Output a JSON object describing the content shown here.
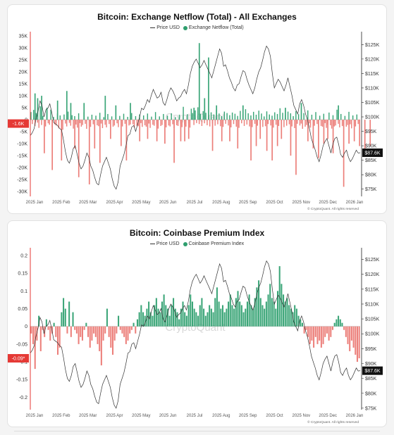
{
  "chart_data": [
    {
      "type": "bar",
      "title": "Bitcoin: Exchange Netflow (Total) - All Exchanges",
      "legend": {
        "price_label": "Price USD",
        "series_label": "Exchange Netflow (Total)",
        "placement": "top"
      },
      "x_ticks": [
        "2025 Jan",
        "2025 Feb",
        "2025 Mar",
        "2025 Apr",
        "2025 May",
        "2025 Jun",
        "2025 Jul",
        "2025 Aug",
        "2025 Sep",
        "2025 Oct",
        "2025 Nov",
        "2025 Dec",
        "2026 Jan"
      ],
      "y_left": {
        "range": [
          -32000,
          35000
        ],
        "ticks": [
          "35K",
          "30K",
          "25K",
          "20K",
          "15K",
          "10K",
          "5K",
          "0",
          "-5K",
          "-10K",
          "-15K",
          "-20K",
          "-25K",
          "-30K"
        ],
        "values": [
          35000,
          30000,
          25000,
          20000,
          15000,
          10000,
          5000,
          0,
          -5000,
          -10000,
          -15000,
          -20000,
          -25000,
          -30000
        ]
      },
      "y_right": {
        "range": [
          72500,
          128000
        ],
        "ticks": [
          "$125K",
          "$120K",
          "$115K",
          "$110K",
          "$105K",
          "$100K",
          "$95K",
          "$90K",
          "$85K",
          "$80K",
          "$75K"
        ],
        "values": [
          125000,
          120000,
          115000,
          110000,
          105000,
          100000,
          95000,
          90000,
          85000,
          80000,
          75000
        ]
      },
      "current_value_label": "-1.6K",
      "current_price_label": "$87.6K",
      "watermark": "CryptoQuant",
      "credit": "© CryptoQuant. All rights reserved",
      "colors": {
        "positive": "#3aa577",
        "negative": "#ec7f7a",
        "price_line": "#333333",
        "marker": "#e53935"
      },
      "spikes": [
        [
          3,
          11000
        ],
        [
          5,
          9000
        ],
        [
          8,
          10000
        ],
        [
          10,
          -14000
        ],
        [
          12,
          5000
        ],
        [
          16,
          -21000
        ],
        [
          20,
          8000
        ],
        [
          23,
          -17000
        ],
        [
          27,
          12000
        ],
        [
          30,
          7000
        ],
        [
          33,
          -12000
        ],
        [
          36,
          -24000
        ],
        [
          40,
          7000
        ],
        [
          44,
          -27000
        ],
        [
          48,
          -12000
        ],
        [
          52,
          -18000
        ],
        [
          56,
          10000
        ],
        [
          60,
          -8000
        ],
        [
          64,
          6000
        ],
        [
          68,
          -11000
        ],
        [
          72,
          -17000
        ],
        [
          75,
          7000
        ],
        [
          82,
          -9000
        ],
        [
          88,
          -8000
        ],
        [
          95,
          -9000
        ],
        [
          101,
          -10000
        ],
        [
          108,
          -18000
        ],
        [
          113,
          -9000
        ],
        [
          116,
          -9000
        ],
        [
          119,
          -8000
        ],
        [
          123,
          5000
        ],
        [
          127,
          32000
        ],
        [
          131,
          9000
        ],
        [
          134,
          26000
        ],
        [
          137,
          -13000
        ],
        [
          140,
          6000
        ],
        [
          144,
          -9000
        ],
        [
          150,
          -9000
        ],
        [
          156,
          -12000
        ],
        [
          160,
          6000
        ],
        [
          166,
          -17000
        ],
        [
          170,
          -11000
        ],
        [
          173,
          -8000
        ],
        [
          178,
          -13000
        ],
        [
          182,
          -17000
        ],
        [
          186,
          -11000
        ],
        [
          189,
          -8000
        ],
        [
          192,
          5000
        ],
        [
          196,
          -15000
        ],
        [
          200,
          -23000
        ],
        [
          204,
          7000
        ],
        [
          209,
          -9000
        ],
        [
          213,
          -12000
        ],
        [
          217,
          -16000
        ],
        [
          221,
          -10000
        ],
        [
          224,
          -8000
        ],
        [
          228,
          -14000
        ],
        [
          232,
          6000
        ],
        [
          236,
          -28000
        ],
        [
          240,
          -10000
        ],
        [
          244,
          -9000
        ],
        [
          248,
          -11000
        ],
        [
          252,
          -12000
        ],
        [
          256,
          -11000
        ]
      ],
      "bars": [
        3200,
        -1800,
        4100,
        -2600,
        2800,
        -1200,
        -3400,
        5600,
        -2200,
        1600,
        -900,
        -2800,
        3600,
        -1500,
        -2100,
        4200,
        -3100,
        1200,
        -1900,
        -2400,
        2600,
        -3600,
        1800,
        -1100,
        -4200,
        2200,
        -1600,
        -2800,
        3400,
        -1300,
        -2500,
        1900,
        -3700,
        1500,
        -2000,
        -3300,
        2700,
        -1400,
        -2900,
        -2200,
        3100,
        -1700,
        -3800,
        1300,
        -2600,
        -3000,
        2100,
        -1900,
        -4100,
        1700,
        -2300,
        -2700,
        2900,
        -1600,
        -3500,
        1100,
        -2100,
        -3200,
        2400,
        -1800,
        -2600,
        1400,
        -2900,
        -2400,
        3000,
        -1500,
        -3100,
        1600,
        -2200,
        -2800,
        2500,
        -1700,
        -3600,
        1200,
        -2400,
        -2000,
        2800,
        -1900,
        -3300,
        1500,
        -2500,
        -2700,
        2200,
        -1400,
        -3000,
        1800,
        -2300,
        -2900,
        2600,
        -1600,
        -3400,
        1300,
        -2100,
        -2500,
        3200,
        -1800,
        -3700,
        1400,
        -2600,
        -2200,
        2400,
        -1500,
        -3200,
        1700,
        -2400,
        -2800,
        2700,
        -1900,
        -3500,
        1100,
        -2300,
        -2600,
        2100,
        -1700,
        -3100,
        5400,
        -2100,
        -2900,
        2300,
        -1600,
        -3300,
        4600,
        2800,
        -2200,
        3900,
        -1400,
        5200,
        -1800,
        2400,
        -2600,
        3600,
        -1500,
        2900,
        -2300,
        1700,
        -2800,
        3100,
        -1600,
        2200,
        -2500,
        4200,
        -1900,
        2600,
        -2700,
        1500,
        -3000,
        3400,
        -1700,
        2800,
        -2400,
        1900,
        -3200,
        3000,
        -1800,
        2500,
        -2900,
        1600,
        -3400,
        3700,
        -1500,
        2300,
        -2600,
        4400,
        -2000,
        2700,
        -2800,
        1800,
        -3100,
        3300,
        -1700,
        2100,
        -2500,
        3800,
        -1900,
        2600,
        -3000,
        1400,
        -2700,
        3500,
        -1800,
        2200,
        -2400,
        1700,
        -3300,
        3100,
        -2100,
        2400,
        -2600,
        4800,
        -1600,
        2900,
        -3100,
        2000,
        -2500,
        3400,
        -1900,
        2700,
        -2800,
        1500,
        -3500,
        3600,
        -1700,
        2300,
        -2400,
        -1600,
        -3800,
        2800,
        -2900,
        -2200,
        3900,
        -1500,
        -3300,
        2100,
        -2700,
        -2500,
        3200,
        -1800,
        -3100,
        1700,
        -2600,
        -2900,
        2500,
        -1400,
        -3400,
        -2100,
        3000,
        -2300,
        -3700,
        1900,
        -2800,
        -2400,
        4200,
        -1700,
        -3200,
        2400,
        -2600,
        -3000,
        1600,
        -2900,
        -2200,
        3300,
        -1900,
        -3600,
        1800,
        -2500,
        -2800,
        2200,
        -1800,
        -1600
      ]
    },
    {
      "type": "bar",
      "title": "Bitcoin: Coinbase Premium Index",
      "legend": {
        "price_label": "Price USD",
        "series_label": "Coinbase Premium Index",
        "placement": "top"
      },
      "x_ticks": [
        "2025 Jan",
        "2025 Feb",
        "2025 Mar",
        "2025 Apr",
        "2025 May",
        "2025 Jun",
        "2025 Jul",
        "2025 Aug",
        "2025 Sep",
        "2025 Oct",
        "2025 Nov",
        "2025 Dec",
        "2026 Jan"
      ],
      "y_left": {
        "range": [
          -0.235,
          0.21
        ],
        "ticks": [
          "0.2",
          "0.15",
          "0.1",
          "0.05",
          "0",
          "-0.05",
          "-0.1",
          "-0.15",
          "-0.2"
        ],
        "values": [
          0.2,
          0.15,
          0.1,
          0.05,
          0,
          -0.05,
          -0.1,
          -0.15,
          -0.2
        ]
      },
      "y_right": {
        "range": [
          74500,
          127500
        ],
        "ticks": [
          "$125K",
          "$120K",
          "$115K",
          "$110K",
          "$105K",
          "$100K",
          "$95K",
          "$90K",
          "$85K",
          "$80K",
          "$75K"
        ],
        "values": [
          125000,
          120000,
          115000,
          110000,
          105000,
          100000,
          95000,
          90000,
          85000,
          80000,
          75000
        ]
      },
      "current_value_label": "-0.09*",
      "current_price_label": "$87.6K",
      "watermark": "CryptoQuant",
      "credit": "© CryptoQuant. All rights reserved",
      "colors": {
        "positive": "#3aa577",
        "negative": "#ec7f7a",
        "price_line": "#333333",
        "marker": "#e53935"
      }
    }
  ],
  "price_series": [
    93500,
    94500,
    96000,
    99500,
    102000,
    105500,
    104000,
    100000,
    102500,
    103000,
    104500,
    101500,
    98000,
    97500,
    97000,
    96000,
    95500,
    92000,
    88000,
    85000,
    84000,
    86000,
    89000,
    90000,
    87000,
    84000,
    82000,
    83000,
    85000,
    87500,
    86000,
    83000,
    81500,
    79000,
    77000,
    76500,
    80000,
    83000,
    84500,
    86000,
    84000,
    82000,
    78500,
    76000,
    75000,
    77500,
    83000,
    85000,
    87000,
    90000,
    93500,
    94000,
    96500,
    97000,
    95000,
    97500,
    100000,
    103000,
    102500,
    104000,
    106000,
    105000,
    107500,
    109500,
    108000,
    106500,
    107000,
    108500,
    105000,
    104000,
    106000,
    108500,
    110000,
    109000,
    107500,
    105500,
    106500,
    107000,
    108500,
    109500,
    108000,
    111000,
    115000,
    117500,
    119000,
    120000,
    118500,
    117000,
    118000,
    119500,
    118000,
    116500,
    115000,
    113500,
    116000,
    118500,
    121000,
    123500,
    122000,
    117500,
    118000,
    116000,
    113500,
    112000,
    110000,
    109000,
    111000,
    111500,
    114000,
    116000,
    115500,
    113000,
    111000,
    109500,
    108000,
    110000,
    113000,
    115500,
    117000,
    119500,
    122500,
    124500,
    123500,
    121000,
    115000,
    110000,
    111500,
    113000,
    112000,
    110500,
    109000,
    111000,
    113500,
    110500,
    107500,
    104000,
    102500,
    101000,
    104500,
    106000,
    104000,
    101000,
    99000,
    96000,
    92500,
    90500,
    88500,
    86000,
    84500,
    87000,
    90000,
    91500,
    92500,
    90000,
    87500,
    90500,
    92500,
    93000,
    90500,
    87000,
    86000,
    87500,
    88500,
    86000,
    84500,
    85500,
    87000,
    88500,
    87500,
    87600
  ],
  "premium_series": [
    -0.02,
    -0.05,
    -0.12,
    -0.04,
    0.03,
    -0.07,
    -0.01,
    -0.03,
    0.02,
    -0.01,
    -0.04,
    -0.02,
    0.01,
    -0.03,
    -0.08,
    -0.06,
    0.04,
    0.08,
    0.05,
    -0.02,
    0.07,
    -0.03,
    0.04,
    -0.01,
    -0.02,
    -0.05,
    -0.03,
    -0.04,
    -0.01,
    0.01,
    -0.03,
    -0.06,
    -0.04,
    -0.02,
    -0.03,
    -0.05,
    -0.07,
    -0.11,
    -0.04,
    -0.02,
    0.05,
    -0.03,
    -0.06,
    -0.08,
    -0.04,
    -0.02,
    0.03,
    -0.01,
    -0.02,
    -0.03,
    -0.05,
    -0.04,
    -0.02,
    -0.01,
    0.01,
    -0.02,
    0.02,
    0.04,
    0.06,
    0.04,
    0.03,
    0.05,
    0.07,
    0.04,
    0.03,
    0.06,
    0.08,
    0.05,
    0.04,
    0.07,
    0.09,
    0.06,
    0.05,
    0.03,
    0.06,
    0.08,
    0.05,
    0.04,
    0.02,
    0.05,
    0.07,
    0.04,
    0.03,
    0.06,
    0.09,
    0.07,
    0.05,
    0.04,
    0.03,
    0.06,
    0.08,
    0.05,
    0.03,
    0.04,
    0.06,
    0.05,
    0.04,
    0.08,
    0.11,
    0.07,
    0.05,
    0.06,
    0.04,
    0.05,
    0.07,
    0.09,
    0.06,
    0.05,
    0.08,
    0.1,
    0.07,
    0.06,
    0.04,
    0.05,
    0.07,
    0.09,
    0.06,
    0.05,
    0.08,
    0.11,
    0.13,
    0.08,
    0.06,
    0.05,
    0.07,
    0.09,
    0.12,
    0.08,
    0.07,
    0.05,
    0.1,
    0.17,
    0.12,
    0.09,
    0.07,
    0.08,
    0.06,
    0.05,
    0.04,
    0.06,
    0.05,
    0.03,
    0.02,
    0.01,
    -0.02,
    -0.01,
    -0.03,
    -0.05,
    -0.04,
    -0.06,
    -0.03,
    -0.05,
    -0.04,
    -0.06,
    -0.05,
    -0.03,
    -0.02,
    -0.04,
    -0.03,
    -0.01,
    0.01,
    0.02,
    0.03,
    0.02,
    0.01,
    -0.01,
    -0.03,
    -0.05,
    -0.07,
    -0.04,
    -0.06,
    -0.08,
    -0.1,
    -0.09
  ]
}
